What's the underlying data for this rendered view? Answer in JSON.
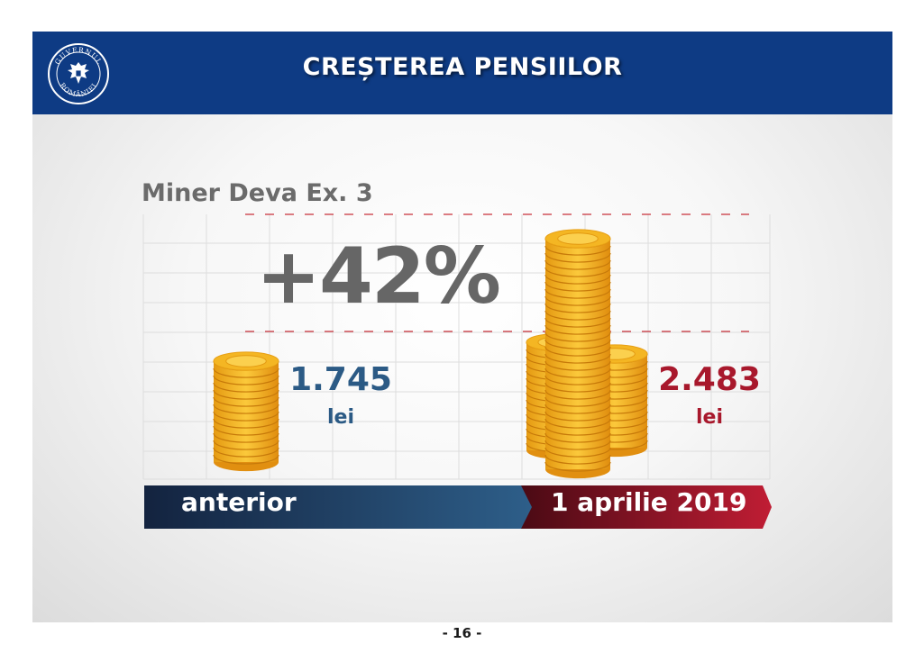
{
  "header": {
    "title": "CREȘTEREA PENSIILOR",
    "emblem_text_top": "GUVERNUL",
    "emblem_text_bottom": "ROMÂNIEI"
  },
  "subtitle": "Miner Deva Ex. 3",
  "increase": "+42%",
  "before": {
    "value": "1.745",
    "currency": "lei",
    "label": "anterior"
  },
  "after": {
    "value": "2.483",
    "currency": "lei",
    "label": "1 aprilie 2019"
  },
  "page_number": "- 16 -",
  "colors": {
    "header_bg": "#0e3b84",
    "before_accent": "#2b5a85",
    "after_accent": "#a8182c",
    "coin": "#f4b623"
  }
}
